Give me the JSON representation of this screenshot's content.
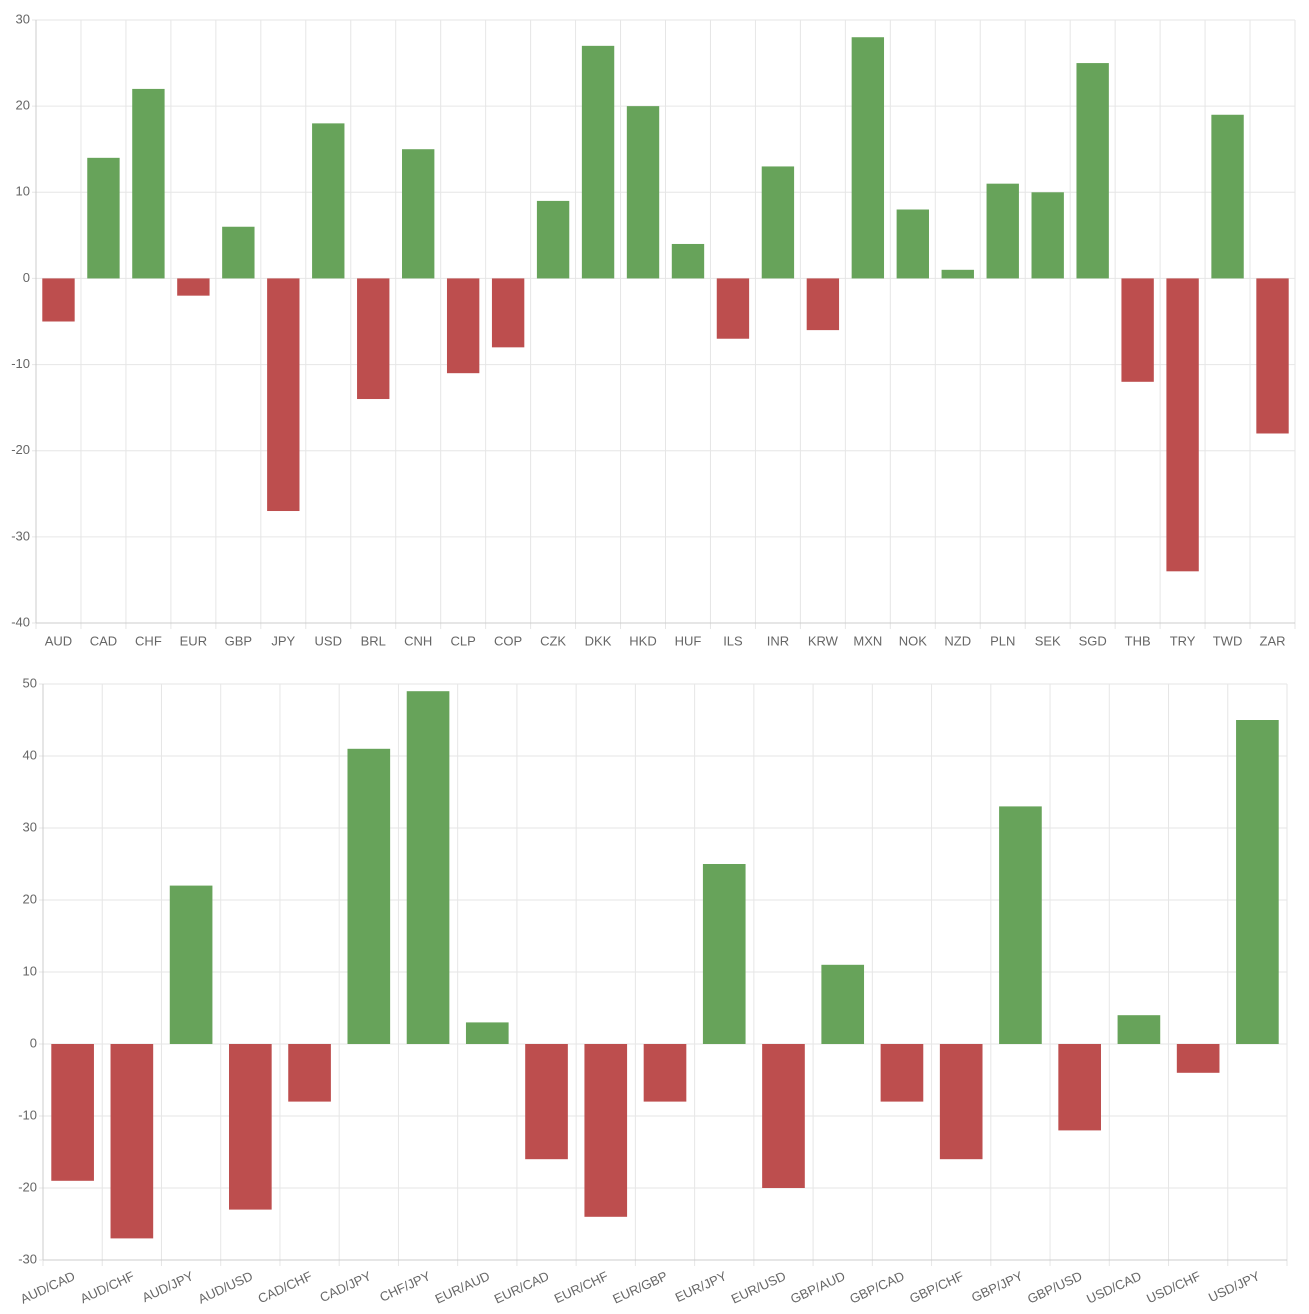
{
  "chart_data": [
    {
      "type": "bar",
      "categories": [
        "AUD",
        "CAD",
        "CHF",
        "EUR",
        "GBP",
        "JPY",
        "USD",
        "BRL",
        "CNH",
        "CLP",
        "COP",
        "CZK",
        "DKK",
        "HKD",
        "HUF",
        "ILS",
        "INR",
        "KRW",
        "MXN",
        "NOK",
        "NZD",
        "PLN",
        "SEK",
        "SGD",
        "THB",
        "TRY",
        "TWD",
        "ZAR"
      ],
      "values": [
        -5,
        14,
        22,
        -2,
        6,
        -27,
        18,
        -14,
        15,
        -11,
        -8,
        9,
        27,
        20,
        4,
        -7,
        13,
        -6,
        28,
        8,
        1,
        11,
        10,
        25,
        -12,
        -34,
        19,
        -18
      ],
      "colors": {
        "positive": "#67a35a",
        "negative": "#bd4e4e"
      },
      "ylim": [
        -40,
        30
      ],
      "yticks": [
        -40,
        -30,
        -20,
        -10,
        0,
        10,
        20,
        30
      ],
      "grid": true
    },
    {
      "type": "bar",
      "categories": [
        "AUD/CAD",
        "AUD/CHF",
        "AUD/JPY",
        "AUD/USD",
        "CAD/CHF",
        "CAD/JPY",
        "CHF/JPY",
        "EUR/AUD",
        "EUR/CAD",
        "EUR/CHF",
        "EUR/GBP",
        "EUR/JPY",
        "EUR/USD",
        "GBP/AUD",
        "GBP/CAD",
        "GBP/CHF",
        "GBP/JPY",
        "GBP/USD",
        "USD/CAD",
        "USD/CHF",
        "USD/JPY"
      ],
      "values": [
        -19,
        -27,
        22,
        -23,
        -8,
        41,
        49,
        3,
        -16,
        -24,
        -8,
        25,
        -20,
        11,
        -8,
        -16,
        33,
        -12,
        4,
        -4,
        45
      ],
      "colors": {
        "positive": "#67a35a",
        "negative": "#bd4e4e"
      },
      "ylim": [
        -30,
        50
      ],
      "yticks": [
        -30,
        -20,
        -10,
        0,
        10,
        20,
        30,
        40,
        50
      ],
      "grid": true
    }
  ]
}
